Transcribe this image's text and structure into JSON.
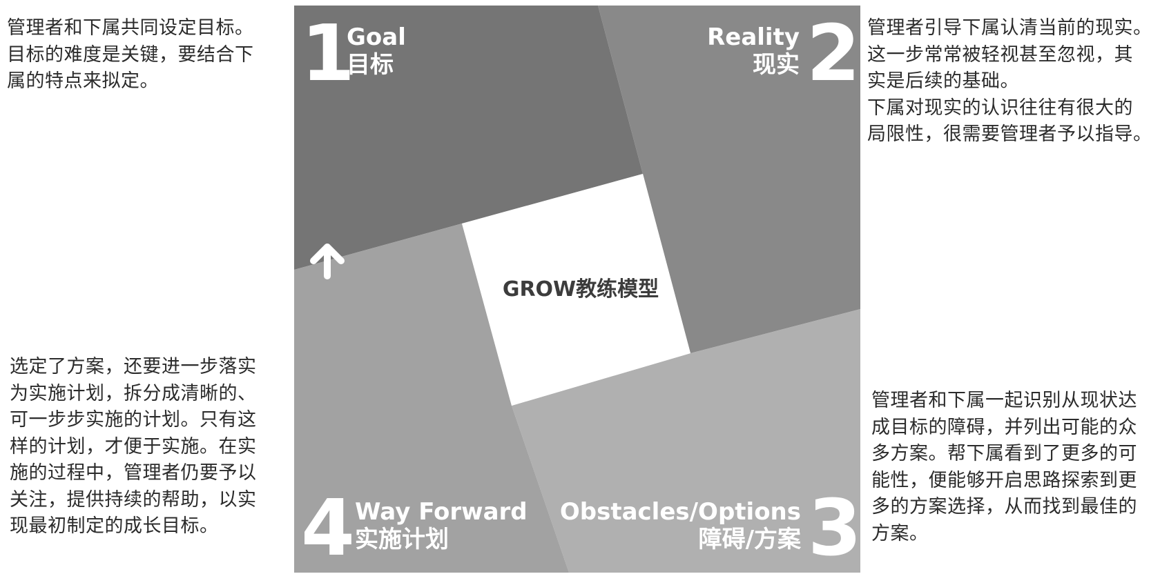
{
  "quadrants": {
    "goal": {
      "number": "1",
      "en": "Goal",
      "cn": "目标",
      "color": "#757575"
    },
    "reality": {
      "number": "2",
      "en": "Reality",
      "cn": "现实",
      "color": "#898989"
    },
    "obstacles": {
      "number": "3",
      "en": "Obstacles/Options",
      "cn": "障碍/方案",
      "color": "#b0b0b0"
    },
    "way_forward": {
      "number": "4",
      "en": "Way Forward",
      "cn": "实施计划",
      "color": "#a2a2a2"
    }
  },
  "center": {
    "title": "GROW教练模型"
  },
  "descriptions": {
    "goal": [
      "管理者和下属共同设定目标。",
      "目标的难度是关键，要结合下",
      "属的特点来拟定。"
    ],
    "reality": [
      "管理者引导下属认清当前的现实。",
      "这一步常常被轻视甚至忽视，其",
      "实是后续的基础。",
      "下属对现实的认识往往有很大的",
      "局限性，很需要管理者予以指导。"
    ],
    "way_forward": [
      "选定了方案，还要进一步落实",
      "为实施计划，拆分成清晰的、",
      "可一步步实施的计划。只有这",
      "样的计划，才便于实施。在实",
      "施的过程中，管理者仍要予以",
      "关注，提供持续的帮助，以实",
      "现最初制定的成长目标。"
    ],
    "obstacles": [
      "管理者和下属一起识别从现状达",
      "成目标的障碍，并列出可能的众",
      "多方案。帮下属看到了更多的可",
      "能性，便能够开启思路探索到更",
      "多的方案选择，从而找到最佳的",
      "方案。"
    ]
  },
  "icons": {
    "arrow": "up-arrow-icon"
  }
}
